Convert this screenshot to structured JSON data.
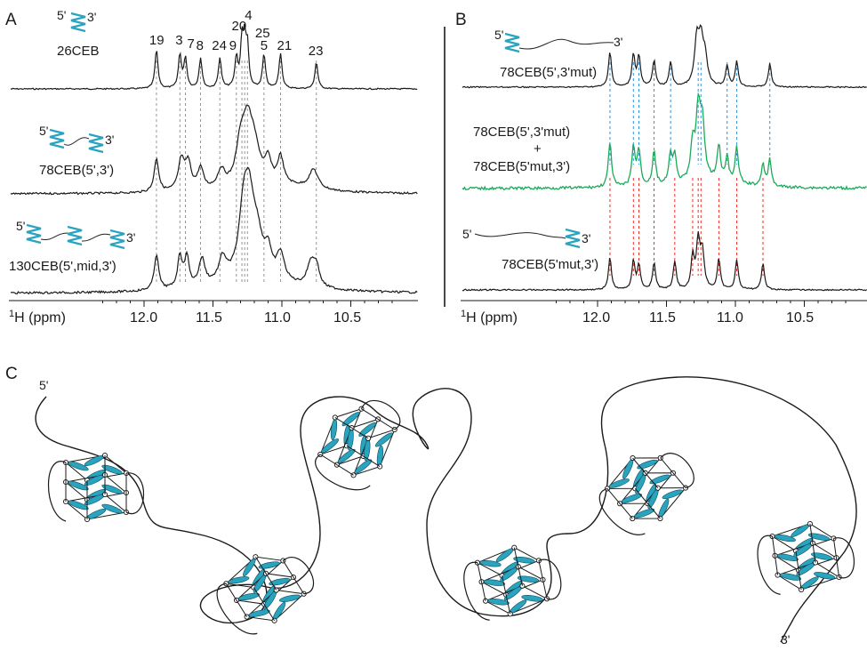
{
  "panelA": {
    "letter": "A",
    "traces": [
      {
        "label": "26CEB",
        "icon_5": "5'",
        "icon_3": "3'"
      },
      {
        "label": "78CEB(5',3')",
        "icon_5": "5'",
        "icon_3": "3'"
      },
      {
        "label": "130CEB(5',mid,3')",
        "icon_5": "5'",
        "icon_3": "3'"
      }
    ],
    "peaks": [
      {
        "n": "19",
        "ppm": 11.91
      },
      {
        "n": "3",
        "ppm": 11.74
      },
      {
        "n": "7",
        "ppm": 11.7
      },
      {
        "n": "8",
        "ppm": 11.59
      },
      {
        "n": "24",
        "ppm": 11.45
      },
      {
        "n": "9",
        "ppm": 11.33
      },
      {
        "n": "20",
        "ppm": 11.29
      },
      {
        "n": "4",
        "ppm": 11.27
      },
      {
        "n": "25",
        "ppm": 11.25
      },
      {
        "n": "5",
        "ppm": 11.13
      },
      {
        "n": "21",
        "ppm": 11.01
      },
      {
        "n": "23",
        "ppm": 10.75
      }
    ],
    "axis": {
      "label_sup": "1",
      "label": "H (ppm)",
      "ticks": [
        "12.0",
        "11.5",
        "11.0",
        "10.5"
      ]
    }
  },
  "panelB": {
    "letter": "B",
    "trace_top": "78CEB(5',3'mut)",
    "trace_mid_1": "78CEB(5',3'mut)",
    "trace_mid_plus": "+",
    "trace_mid_2": "78CEB(5'mut,3')",
    "trace_bot": "78CEB(5'mut,3')",
    "icon_5": "5'",
    "icon_3": "3'",
    "axis": {
      "label_sup": "1",
      "label": "H (ppm)",
      "ticks": [
        "12.0",
        "11.5",
        "11.0",
        "10.5"
      ]
    },
    "blue_peaks_ppm": [
      11.91,
      11.74,
      11.7,
      11.59,
      11.47,
      11.27,
      11.25,
      11.06,
      10.99,
      10.75
    ],
    "red_peaks_ppm": [
      11.91,
      11.74,
      11.7,
      11.59,
      11.44,
      11.31,
      11.27,
      11.25,
      11.12,
      10.99,
      10.8
    ]
  },
  "panelC": {
    "letter": "C",
    "label_5": "5'",
    "label_3": "3'",
    "quadruplex_count": 6
  },
  "colors": {
    "trace": "#1a1a1a",
    "green_trace": "#1aaa5a",
    "blue_guide": "#3a8fd0",
    "red_guide": "#e0302a",
    "gray_guide": "#8a8a8a",
    "quartet": "#2aa3bf"
  }
}
